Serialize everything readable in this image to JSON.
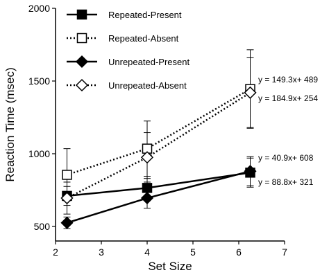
{
  "chart_data": {
    "type": "line",
    "xlabel": "Set Size",
    "ylabel": "Reaction Time (msec)",
    "xlim": [
      2,
      7
    ],
    "ylim": [
      400,
      2000
    ],
    "x_ticks": [
      "2",
      "3",
      "4",
      "5",
      "6",
      "7"
    ],
    "y_ticks": [
      "500",
      "1000",
      "1500",
      "2000"
    ],
    "grid": false,
    "legend_position": "top-left",
    "series": [
      {
        "name": "Repeated-Present",
        "marker": "filled-square",
        "line": "solid",
        "x": [
          2.25,
          4,
          6.25
        ],
        "y": [
          710,
          765,
          870
        ],
        "err": [
          65,
          65,
          100
        ]
      },
      {
        "name": "Repeated-Absent",
        "marker": "open-square",
        "line": "dotted",
        "x": [
          2.25,
          4,
          6.25
        ],
        "y": [
          855,
          1035,
          1445
        ],
        "err": [
          180,
          190,
          270
        ]
      },
      {
        "name": "Unrepeated-Present",
        "marker": "filled-diamond",
        "line": "solid",
        "x": [
          2.25,
          4,
          6.25
        ],
        "y": [
          525,
          695,
          880
        ],
        "err": [
          40,
          70,
          100
        ]
      },
      {
        "name": "Unrepeated-Absent",
        "marker": "open-diamond",
        "line": "dotted",
        "x": [
          2.25,
          4,
          6.25
        ],
        "y": [
          695,
          975,
          1420
        ],
        "err": [
          110,
          170,
          240
        ]
      }
    ],
    "annotations": [
      "y = 149.3x+ 489",
      "y = 184.9x+ 254",
      "y = 40.9x+ 608",
      "y = 88.8x+ 321"
    ]
  }
}
